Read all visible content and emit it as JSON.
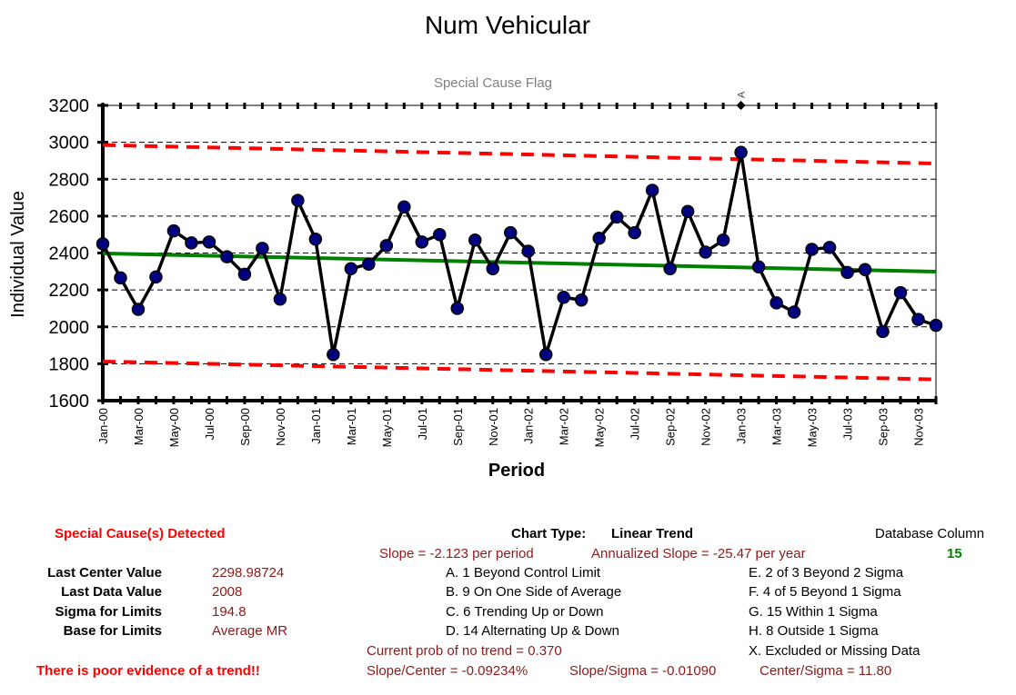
{
  "chart_data": {
    "type": "line",
    "title": "Num Vehicular",
    "subtitle": "Special Cause Flag",
    "xlabel": "Period",
    "ylabel": "Individual Value",
    "ylim": [
      1600,
      3200
    ],
    "yticks": [
      1600,
      1800,
      2000,
      2200,
      2400,
      2600,
      2800,
      3000,
      3200
    ],
    "grid": true,
    "x_tick_labels": [
      "Jan-00",
      "Mar-00",
      "May-00",
      "Jul-00",
      "Sep-00",
      "Nov-00",
      "Jan-01",
      "Mar-01",
      "May-01",
      "Jul-01",
      "Sep-01",
      "Nov-01",
      "Jan-02",
      "Mar-02",
      "May-02",
      "Jul-02",
      "Sep-02",
      "Nov-02",
      "Jan-03",
      "Mar-03",
      "May-03",
      "Jul-03",
      "Sep-03",
      "Nov-03"
    ],
    "x": [
      "Jan-00",
      "Feb-00",
      "Mar-00",
      "Apr-00",
      "May-00",
      "Jun-00",
      "Jul-00",
      "Aug-00",
      "Sep-00",
      "Oct-00",
      "Nov-00",
      "Dec-00",
      "Jan-01",
      "Feb-01",
      "Mar-01",
      "Apr-01",
      "May-01",
      "Jun-01",
      "Jul-01",
      "Aug-01",
      "Sep-01",
      "Oct-01",
      "Nov-01",
      "Dec-01",
      "Jan-02",
      "Feb-02",
      "Mar-02",
      "Apr-02",
      "May-02",
      "Jun-02",
      "Jul-02",
      "Aug-02",
      "Sep-02",
      "Oct-02",
      "Nov-02",
      "Dec-02",
      "Jan-03",
      "Feb-03",
      "Mar-03",
      "Apr-03",
      "May-03",
      "Jun-03",
      "Jul-03",
      "Aug-03",
      "Sep-03",
      "Oct-03",
      "Nov-03",
      "Dec-03"
    ],
    "series": [
      {
        "values": [
          2450,
          2265,
          2095,
          2270,
          2520,
          2455,
          2460,
          2380,
          2285,
          2425,
          2150,
          2685,
          2475,
          1850,
          2315,
          2340,
          2440,
          2650,
          2460,
          2500,
          2100,
          2470,
          2315,
          2510,
          2410,
          1850,
          2160,
          2145,
          2480,
          2595,
          2510,
          2740,
          2315,
          2625,
          2405,
          2470,
          2945,
          2325,
          2130,
          2080,
          2420,
          2430,
          2295,
          2310,
          1975,
          2185,
          2040,
          2008
        ],
        "color": "#000000",
        "marker_color": "#000080"
      },
      {
        "values_start": 2398,
        "values_end": 2299,
        "color": "#008000"
      },
      {
        "values_start": 2985,
        "values_end": 2885,
        "color": "#ff0000"
      },
      {
        "values_start": 1812,
        "values_end": 1715,
        "color": "#ff0000"
      }
    ],
    "annotations": [
      {
        "x": "Jan-03",
        "y": 3200,
        "text": "A"
      }
    ]
  },
  "panel": {
    "special_cause": "Special Cause(s) Detected",
    "last_center_label": "Last Center Value",
    "last_center_value": "2298.98724",
    "last_data_label": "Last Data Value",
    "last_data_value": "2008",
    "sigma_label": "Sigma for Limits",
    "sigma_value": "194.8",
    "base_label": "Base for Limits",
    "base_value": "Average MR",
    "trend_note": "There is poor evidence of a trend!!",
    "chart_type_label": "Chart Type:",
    "chart_type_value": "Linear Trend",
    "slope": "Slope = -2.123 per period",
    "annualized": "Annualized Slope = -25.47 per year",
    "rule_a": "A.  1 Beyond Control Limit",
    "rule_b": "B.  9 On One Side of Average",
    "rule_c": "C.  6 Trending Up or Down",
    "rule_d": "D.  14 Alternating  Up & Down",
    "rule_e": "E.  2 of 3 Beyond 2 Sigma",
    "rule_f": "F.  4 of 5 Beyond 1 Sigma",
    "rule_g": "G.  15 Within 1 Sigma",
    "rule_h": "H.  8 Outside 1 Sigma",
    "rule_x": "X.  Excluded or Missing Data",
    "prob": "Current prob of no trend = 0.370",
    "slope_center": "Slope/Center = -0.09234%",
    "slope_sigma": "Slope/Sigma = -0.01090",
    "center_sigma": "Center/Sigma = 11.80",
    "db_label": "Database Column",
    "db_value": "15"
  },
  "colors": {
    "data_line": "#000000",
    "marker": "#000080",
    "center_line": "#008000",
    "limit_lines": "#ff0000",
    "accent_text": "#8b1a1a"
  }
}
